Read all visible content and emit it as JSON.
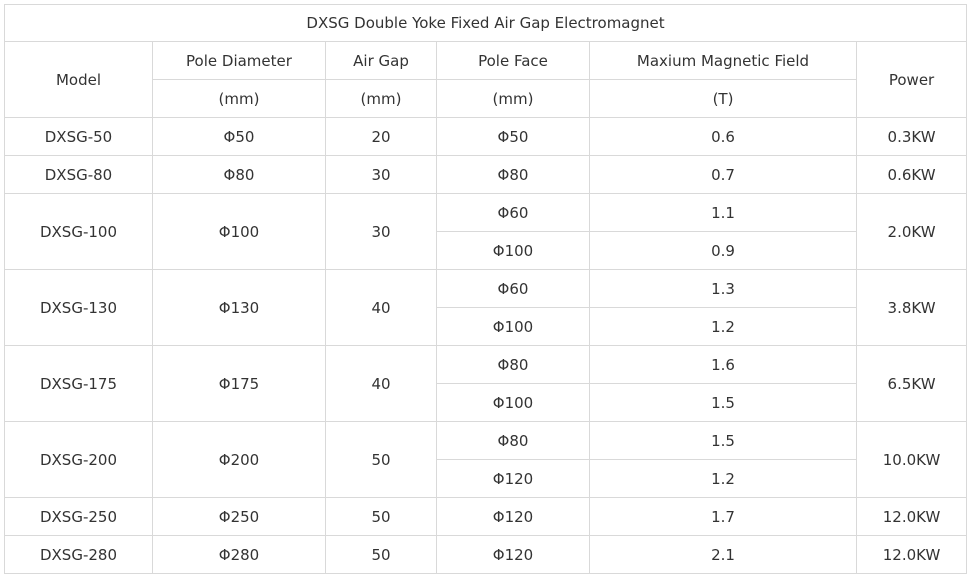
{
  "table": {
    "title": "DXSG Double Yoke Fixed Air Gap Electromagnet",
    "headers": {
      "model": "Model",
      "pole_diameter": "Pole Diameter",
      "air_gap": "Air Gap",
      "pole_face": "Pole Face",
      "max_field": "Maxium Magnetic Field",
      "power": "Power"
    },
    "units": {
      "pole_diameter": "(mm)",
      "air_gap": "(mm)",
      "pole_face": "(mm)",
      "max_field": "(T)"
    },
    "rows": [
      {
        "model": "DXSG-50",
        "pole_diameter": "Φ50",
        "air_gap": "20",
        "power": "0.3KW",
        "faces": [
          {
            "pole_face": "Φ50",
            "field": "0.6"
          }
        ]
      },
      {
        "model": "DXSG-80",
        "pole_diameter": "Φ80",
        "air_gap": "30",
        "power": "0.6KW",
        "faces": [
          {
            "pole_face": "Φ80",
            "field": "0.7"
          }
        ]
      },
      {
        "model": "DXSG-100",
        "pole_diameter": "Φ100",
        "air_gap": "30",
        "power": "2.0KW",
        "faces": [
          {
            "pole_face": "Φ60",
            "field": "1.1"
          },
          {
            "pole_face": "Φ100",
            "field": "0.9"
          }
        ]
      },
      {
        "model": "DXSG-130",
        "pole_diameter": "Φ130",
        "air_gap": "40",
        "power": "3.8KW",
        "faces": [
          {
            "pole_face": "Φ60",
            "field": "1.3"
          },
          {
            "pole_face": "Φ100",
            "field": "1.2"
          }
        ]
      },
      {
        "model": "DXSG-175",
        "pole_diameter": "Φ175",
        "air_gap": "40",
        "power": "6.5KW",
        "faces": [
          {
            "pole_face": "Φ80",
            "field": "1.6"
          },
          {
            "pole_face": "Φ100",
            "field": "1.5"
          }
        ]
      },
      {
        "model": "DXSG-200",
        "pole_diameter": "Φ200",
        "air_gap": "50",
        "power": "10.0KW",
        "faces": [
          {
            "pole_face": "Φ80",
            "field": "1.5"
          },
          {
            "pole_face": "Φ120",
            "field": "1.2"
          }
        ]
      },
      {
        "model": "DXSG-250",
        "pole_diameter": "Φ250",
        "air_gap": "50",
        "power": "12.0KW",
        "faces": [
          {
            "pole_face": "Φ120",
            "field": "1.7"
          }
        ]
      },
      {
        "model": "DXSG-280",
        "pole_diameter": "Φ280",
        "air_gap": "50",
        "power": "12.0KW",
        "faces": [
          {
            "pole_face": "Φ120",
            "field": "2.1"
          }
        ]
      }
    ]
  }
}
